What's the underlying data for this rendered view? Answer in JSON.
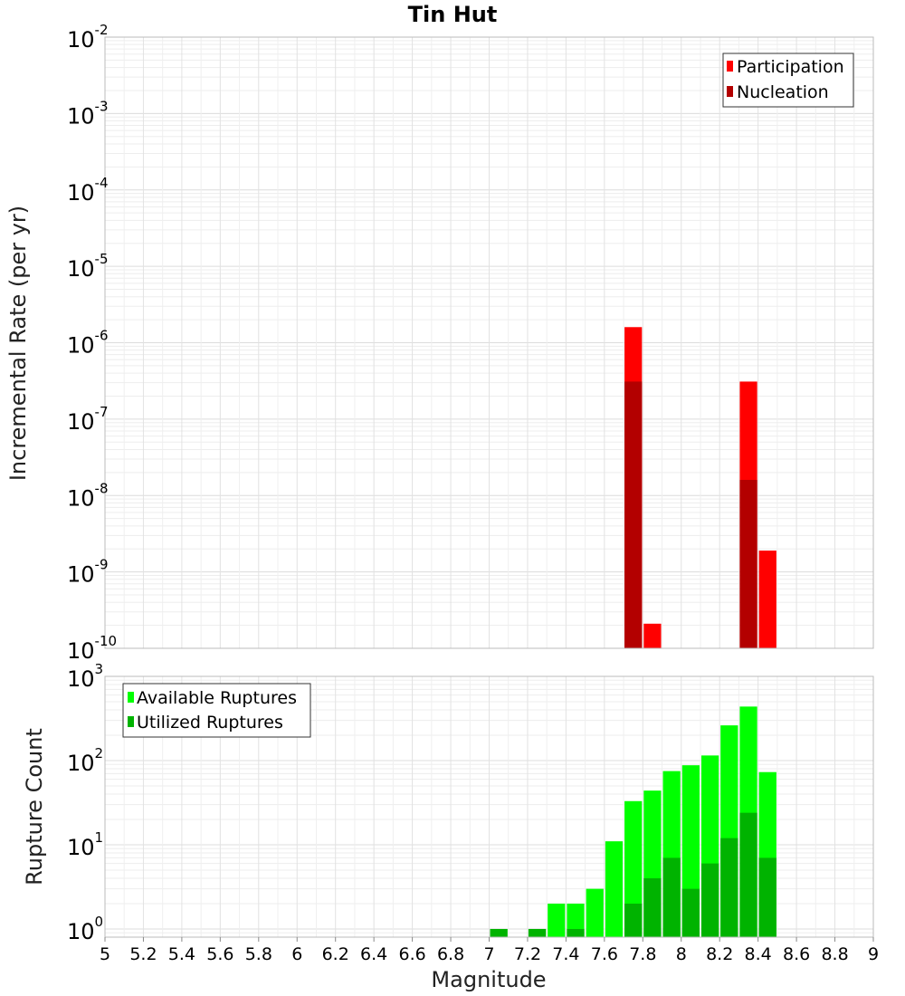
{
  "chart_data": [
    {
      "type": "bar",
      "title": "Tin Hut",
      "ylabel": "Incremental Rate (per yr)",
      "xlabel": "",
      "xlim": [
        5,
        9
      ],
      "ylim": [
        1e-10,
        0.01
      ],
      "yscale": "log",
      "grid": true,
      "legend_position": "top-right",
      "y_ticks": [
        {
          "base": "10",
          "exp": "-2",
          "value": 0.01
        },
        {
          "base": "10",
          "exp": "-3",
          "value": 0.001
        },
        {
          "base": "10",
          "exp": "-4",
          "value": 0.0001
        },
        {
          "base": "10",
          "exp": "-5",
          "value": 1e-05
        },
        {
          "base": "10",
          "exp": "-6",
          "value": 1e-06
        },
        {
          "base": "10",
          "exp": "-7",
          "value": 1e-07
        },
        {
          "base": "10",
          "exp": "-8",
          "value": 1e-08
        },
        {
          "base": "10",
          "exp": "-9",
          "value": 1e-09
        },
        {
          "base": "10",
          "exp": "-10",
          "value": 1e-10
        }
      ],
      "series": [
        {
          "name": "Participation",
          "color": "#ff0000",
          "points": [
            {
              "x": 7.75,
              "y": 1.6e-06
            },
            {
              "x": 7.85,
              "y": 2.1e-10
            },
            {
              "x": 8.35,
              "y": 3.1e-07
            },
            {
              "x": 8.45,
              "y": 1.9e-09
            }
          ]
        },
        {
          "name": "Nucleation",
          "color": "#b30000",
          "points": [
            {
              "x": 7.75,
              "y": 3.1e-07
            },
            {
              "x": 8.35,
              "y": 1.6e-08
            }
          ]
        }
      ]
    },
    {
      "type": "bar",
      "title": "",
      "ylabel": "Rupture Count",
      "xlabel": "Magnitude",
      "xlim": [
        5,
        9
      ],
      "ylim": [
        0.8,
        1000
      ],
      "yscale": "log",
      "grid": true,
      "legend_position": "top-left",
      "x_ticks": [
        "5",
        "5.2",
        "5.4",
        "5.6",
        "5.8",
        "6",
        "6.2",
        "6.4",
        "6.6",
        "6.8",
        "7",
        "7.2",
        "7.4",
        "7.6",
        "7.8",
        "8",
        "8.2",
        "8.4",
        "8.6",
        "8.8",
        "9"
      ],
      "y_ticks": [
        {
          "base": "10",
          "exp": "3",
          "value": 1000
        },
        {
          "base": "10",
          "exp": "2",
          "value": 100
        },
        {
          "base": "10",
          "exp": "1",
          "value": 10
        },
        {
          "base": "10",
          "exp": "0",
          "value": 1
        }
      ],
      "series": [
        {
          "name": "Available Ruptures",
          "color": "#00ff00",
          "points": [
            {
              "x": 7.05,
              "y": 1
            },
            {
              "x": 7.25,
              "y": 1
            },
            {
              "x": 7.35,
              "y": 2
            },
            {
              "x": 7.45,
              "y": 2
            },
            {
              "x": 7.55,
              "y": 3
            },
            {
              "x": 7.65,
              "y": 11
            },
            {
              "x": 7.75,
              "y": 33
            },
            {
              "x": 7.85,
              "y": 44
            },
            {
              "x": 7.95,
              "y": 75
            },
            {
              "x": 8.05,
              "y": 88
            },
            {
              "x": 8.15,
              "y": 115
            },
            {
              "x": 8.25,
              "y": 262
            },
            {
              "x": 8.35,
              "y": 438
            },
            {
              "x": 8.45,
              "y": 73
            }
          ]
        },
        {
          "name": "Utilized Ruptures",
          "color": "#00b300",
          "points": [
            {
              "x": 7.05,
              "y": 1
            },
            {
              "x": 7.25,
              "y": 1
            },
            {
              "x": 7.45,
              "y": 1
            },
            {
              "x": 7.75,
              "y": 2
            },
            {
              "x": 7.85,
              "y": 4
            },
            {
              "x": 7.95,
              "y": 7
            },
            {
              "x": 8.05,
              "y": 3
            },
            {
              "x": 8.15,
              "y": 6
            },
            {
              "x": 8.25,
              "y": 12
            },
            {
              "x": 8.35,
              "y": 24
            },
            {
              "x": 8.45,
              "y": 7
            }
          ]
        }
      ]
    }
  ]
}
